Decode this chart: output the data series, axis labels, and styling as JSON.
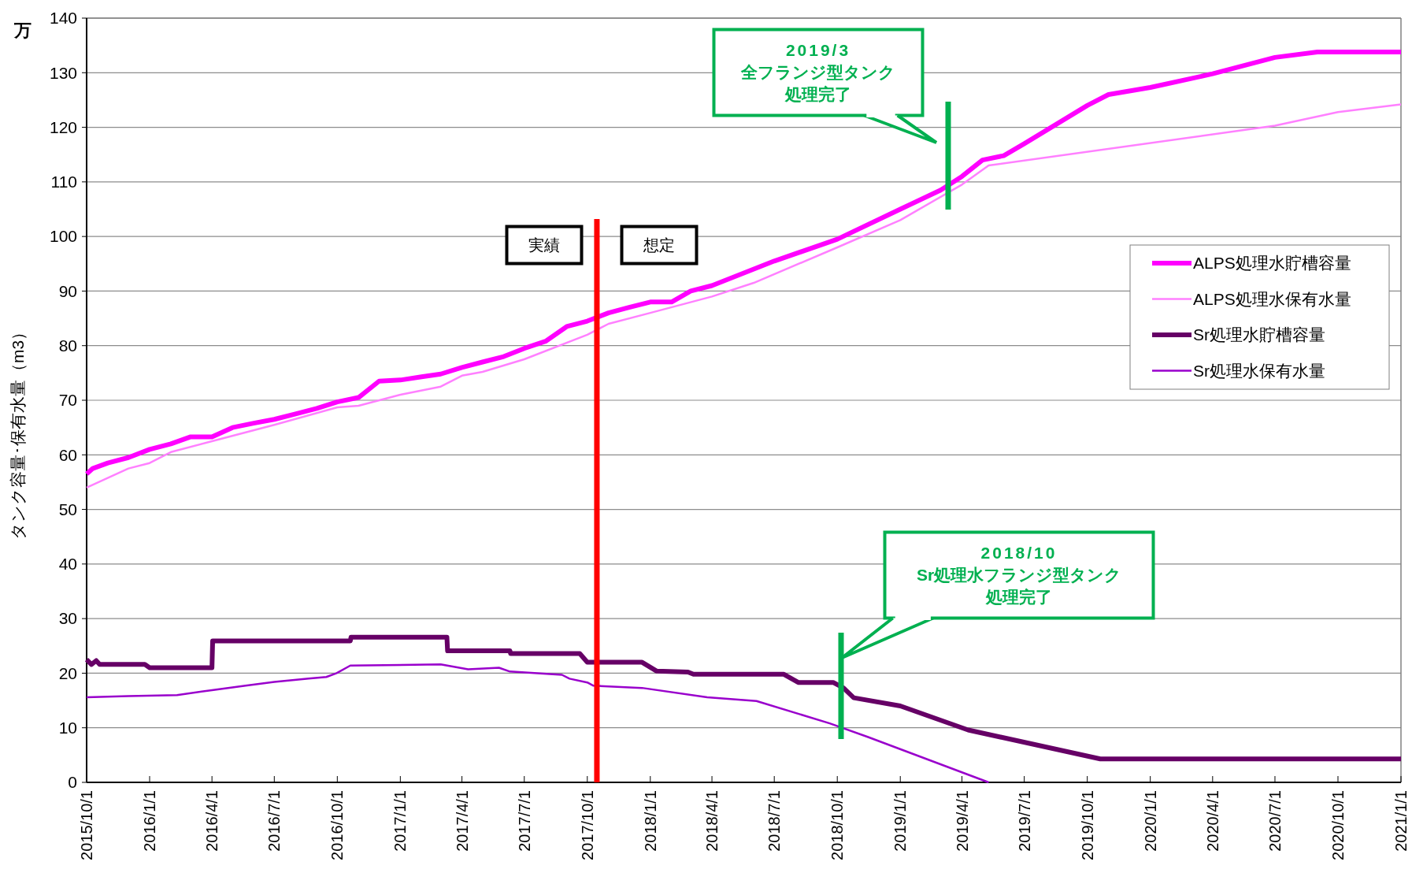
{
  "chart_data": {
    "type": "line",
    "ylabel": "タンク容量･保有水量（m3）",
    "xlim": [
      "2015-10-01",
      "2021-01-01"
    ],
    "ylim": [
      0,
      140
    ],
    "yticks": [
      0,
      10,
      20,
      30,
      40,
      50,
      60,
      70,
      80,
      90,
      100,
      110,
      120,
      130,
      140
    ],
    "xticks": [
      {
        "value": "2015-10-01",
        "label": "2015/10/1"
      },
      {
        "value": "2016-01-01",
        "label": "2016/1/1"
      },
      {
        "value": "2016-04-01",
        "label": "2016/4/1"
      },
      {
        "value": "2016-07-01",
        "label": "2016/7/1"
      },
      {
        "value": "2016-10-01",
        "label": "2016/10/1"
      },
      {
        "value": "2017-01-01",
        "label": "2017/1/1"
      },
      {
        "value": "2017-04-01",
        "label": "2017/4/1"
      },
      {
        "value": "2017-07-01",
        "label": "2017/7/1"
      },
      {
        "value": "2017-10-01",
        "label": "2017/10/1"
      },
      {
        "value": "2018-01-01",
        "label": "2018/1/1"
      },
      {
        "value": "2018-04-01",
        "label": "2018/4/1"
      },
      {
        "value": "2018-07-01",
        "label": "2018/7/1"
      },
      {
        "value": "2018-10-01",
        "label": "2018/10/1"
      },
      {
        "value": "2019-01-01",
        "label": "2019/1/1"
      },
      {
        "value": "2019-04-01",
        "label": "2019/4/1"
      },
      {
        "value": "2019-07-01",
        "label": "2019/7/1"
      },
      {
        "value": "2019-10-01",
        "label": "2019/10/1"
      },
      {
        "value": "2020-01-01",
        "label": "2020/1/1"
      },
      {
        "value": "2020-04-01",
        "label": "2020/4/1"
      },
      {
        "value": "2020-07-01",
        "label": "2020/7/1"
      },
      {
        "value": "2020-10-01",
        "label": "2020/10/1"
      },
      {
        "value": "2021-01-01",
        "label": "2021/1/1"
      }
    ],
    "grid": "y",
    "legend": "right",
    "series": [
      {
        "name": "ALPS処理水貯槽容量",
        "color": "#ff00ff",
        "x": [
          "2015-10-01",
          "2015-10-10",
          "2015-11-01",
          "2015-12-01",
          "2016-01-01",
          "2016-02-01",
          "2016-03-01",
          "2016-04-01",
          "2016-05-01",
          "2016-06-01",
          "2016-07-01",
          "2016-08-01",
          "2016-09-01",
          "2016-10-01",
          "2016-11-01",
          "2016-12-01",
          "2017-01-01",
          "2017-02-01",
          "2017-03-01",
          "2017-04-01",
          "2017-05-01",
          "2017-06-01",
          "2017-07-01",
          "2017-08-01",
          "2017-09-01",
          "2017-10-01",
          "2017-11-01",
          "2017-12-01",
          "2018-01-01",
          "2018-02-01",
          "2018-03-01",
          "2018-04-01",
          "2018-07-01",
          "2018-10-01",
          "2019-01-01",
          "2019-03-01",
          "2019-04-01",
          "2019-05-01",
          "2019-06-01",
          "2019-07-01",
          "2019-10-01",
          "2019-11-01",
          "2020-01-01",
          "2020-04-01",
          "2020-07-01",
          "2020-09-01",
          "2021-01-01"
        ],
        "values": [
          56.5,
          57.5,
          58.5,
          59.5,
          61,
          62,
          63.3,
          63.3,
          65,
          65.8,
          66.5,
          67.5,
          68.5,
          69.7,
          70.5,
          73.5,
          73.7,
          74.3,
          74.8,
          76,
          77,
          78,
          79.5,
          80.8,
          83.5,
          84.5,
          86,
          87,
          88,
          88,
          90,
          91,
          95.5,
          99.5,
          105,
          108.5,
          111,
          114,
          114.8,
          117,
          124,
          126,
          127.3,
          129.8,
          132.8,
          133.8,
          133.8
        ]
      },
      {
        "name": "ALPS処理水保有水量",
        "color": "#ff80ff",
        "x": [
          "2015-10-01",
          "2015-12-01",
          "2016-01-01",
          "2016-02-01",
          "2016-04-01",
          "2016-07-01",
          "2016-10-01",
          "2016-11-01",
          "2017-01-01",
          "2017-03-01",
          "2017-04-01",
          "2017-05-01",
          "2017-07-01",
          "2017-10-01",
          "2017-11-01",
          "2018-01-01",
          "2018-04-01",
          "2018-06-01",
          "2018-10-01",
          "2019-01-01",
          "2019-04-01",
          "2019-05-10",
          "2020-07-01",
          "2020-10-01",
          "2021-01-01"
        ],
        "values": [
          54,
          57.5,
          58.5,
          60.5,
          62.5,
          65.5,
          68.7,
          69,
          71,
          72.5,
          74.5,
          75.2,
          77.5,
          82,
          84,
          86,
          89,
          91.5,
          98,
          103,
          109.5,
          113,
          120.3,
          122.8,
          124.2
        ]
      },
      {
        "name": "Sr処理水貯槽容量",
        "color": "#660066",
        "x": [
          "2015-10-01",
          "2015-10-08",
          "2015-10-15",
          "2015-10-20",
          "2015-12-25",
          "2016-01-01",
          "2016-04-01",
          "2016-04-02",
          "2016-10-20",
          "2016-10-21",
          "2017-03-10",
          "2017-03-11",
          "2017-06-10",
          "2017-06-11",
          "2017-09-20",
          "2017-10-01",
          "2017-12-20",
          "2018-01-10",
          "2018-02-25",
          "2018-03-05",
          "2018-07-15",
          "2018-08-05",
          "2018-09-25",
          "2018-10-10",
          "2018-10-25",
          "2019-01-01",
          "2019-04-10",
          "2019-10-20",
          "2021-01-01"
        ],
        "values": [
          22.5,
          21.6,
          22.3,
          21.6,
          21.6,
          21,
          21,
          25.9,
          25.9,
          26.6,
          26.6,
          24.1,
          24.1,
          23.6,
          23.6,
          22,
          22,
          20.4,
          20.2,
          19.8,
          19.8,
          18.3,
          18.3,
          17.3,
          15.5,
          14,
          9.6,
          4.3,
          4.3
        ]
      },
      {
        "name": "Sr処理水保有水量",
        "color": "#9900cc",
        "x": [
          "2015-10-01",
          "2015-12-01",
          "2016-02-10",
          "2016-04-01",
          "2016-05-20",
          "2016-07-01",
          "2016-08-20",
          "2016-09-15",
          "2016-09-30",
          "2016-10-20",
          "2017-03-01",
          "2017-04-10",
          "2017-05-25",
          "2017-06-10",
          "2017-08-25",
          "2017-09-05",
          "2017-10-01",
          "2017-10-10",
          "2017-12-20",
          "2018-03-25",
          "2018-06-05",
          "2018-09-20",
          "2018-11-15",
          "2019-05-10"
        ],
        "values": [
          15.6,
          15.8,
          16,
          16.9,
          17.7,
          18.4,
          19,
          19.3,
          20,
          21.4,
          21.6,
          20.7,
          21,
          20.3,
          19.7,
          19,
          18.3,
          17.7,
          17.3,
          15.6,
          14.9,
          10.8,
          8.3,
          0
        ]
      }
    ],
    "ref_lines": [
      {
        "axis": "x",
        "value": "2017-10-15",
        "color": "#ff0000"
      }
    ],
    "annotations": [
      "万",
      "2019/3",
      "全フランジ型タンク処理完了",
      "2018/10",
      "Sr処理水フランジ型タンク処理完了",
      "実績",
      "想定"
    ]
  }
}
